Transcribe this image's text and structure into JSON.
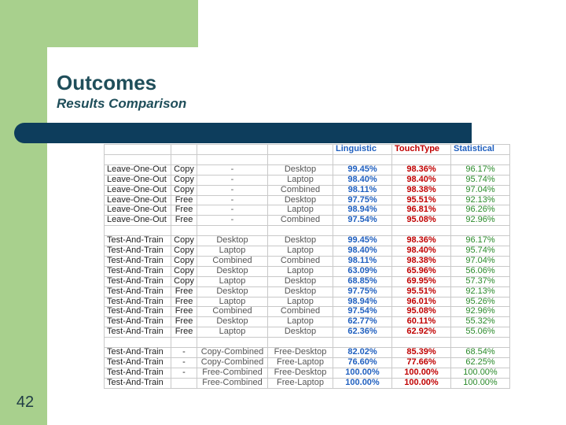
{
  "title": "Outcomes",
  "subtitle": "Results Comparison",
  "slide_number": "42",
  "headers": {
    "linguistic": "Linguistic",
    "touchtype": "TouchType",
    "statistical": "Statistical"
  },
  "groups": [
    {
      "rows": [
        [
          "Leave-One-Out",
          "Copy",
          "-",
          "Desktop",
          "99.45%",
          "98.36%",
          "96.17%"
        ],
        [
          "Leave-One-Out",
          "Copy",
          "-",
          "Laptop",
          "98.40%",
          "98.40%",
          "95.74%"
        ],
        [
          "Leave-One-Out",
          "Copy",
          "-",
          "Combined",
          "98.11%",
          "98.38%",
          "97.04%"
        ],
        [
          "Leave-One-Out",
          "Free",
          "-",
          "Desktop",
          "97.75%",
          "95.51%",
          "92.13%"
        ],
        [
          "Leave-One-Out",
          "Free",
          "-",
          "Laptop",
          "98.94%",
          "96.81%",
          "96.26%"
        ],
        [
          "Leave-One-Out",
          "Free",
          "-",
          "Combined",
          "97.54%",
          "95.08%",
          "92.96%"
        ]
      ]
    },
    {
      "rows": [
        [
          "Test-And-Train",
          "Copy",
          "Desktop",
          "Desktop",
          "99.45%",
          "98.36%",
          "96.17%"
        ],
        [
          "Test-And-Train",
          "Copy",
          "Laptop",
          "Laptop",
          "98.40%",
          "98.40%",
          "95.74%"
        ],
        [
          "Test-And-Train",
          "Copy",
          "Combined",
          "Combined",
          "98.11%",
          "98.38%",
          "97.04%"
        ],
        [
          "Test-And-Train",
          "Copy",
          "Desktop",
          "Laptop",
          "63.09%",
          "65.96%",
          "56.06%"
        ],
        [
          "Test-And-Train",
          "Copy",
          "Laptop",
          "Desktop",
          "68.85%",
          "69.95%",
          "57.37%"
        ],
        [
          "Test-And-Train",
          "Free",
          "Desktop",
          "Desktop",
          "97.75%",
          "95.51%",
          "92.13%"
        ],
        [
          "Test-And-Train",
          "Free",
          "Laptop",
          "Laptop",
          "98.94%",
          "96.01%",
          "95.26%"
        ],
        [
          "Test-And-Train",
          "Free",
          "Combined",
          "Combined",
          "97.54%",
          "95.08%",
          "92.96%"
        ],
        [
          "Test-And-Train",
          "Free",
          "Desktop",
          "Laptop",
          "62.77%",
          "60.11%",
          "55.32%"
        ],
        [
          "Test-And-Train",
          "Free",
          "Laptop",
          "Desktop",
          "62.36%",
          "62.92%",
          "55.06%"
        ]
      ]
    },
    {
      "rows": [
        [
          "Test-And-Train",
          "-",
          "Copy-Combined",
          "Free-Desktop",
          "82.02%",
          "85.39%",
          "68.54%"
        ],
        [
          "Test-And-Train",
          "-",
          "Copy-Combined",
          "Free-Laptop",
          "76.60%",
          "77.66%",
          "62.25%"
        ],
        [
          "Test-And-Train",
          "-",
          "Free-Combined",
          "Free-Desktop",
          "100.00%",
          "100.00%",
          "100.00%"
        ],
        [
          "Test-And-Train",
          "",
          "Free-Combined",
          "Free-Laptop",
          "100.00%",
          "100.00%",
          "100.00%"
        ]
      ]
    }
  ]
}
